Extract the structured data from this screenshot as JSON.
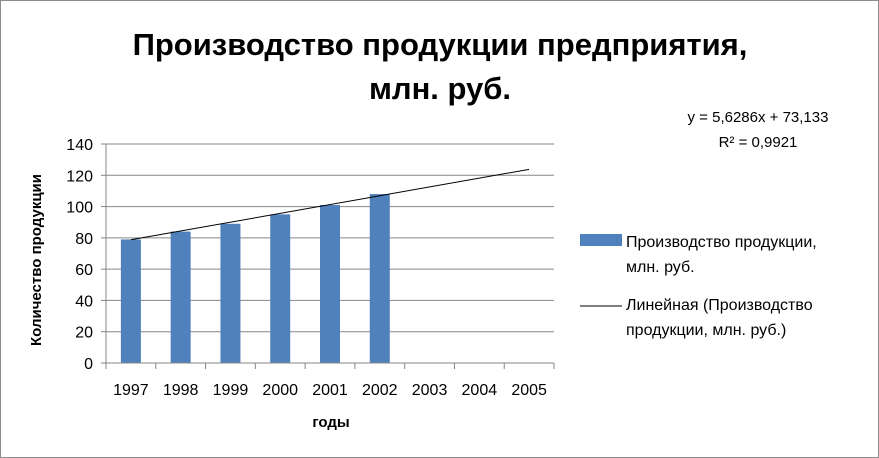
{
  "chart_data": {
    "type": "bar",
    "title_lines": [
      "Производство продукции предприятия,",
      "млн. руб."
    ],
    "xlabel": "годы",
    "ylabel": "Количество продукции",
    "categories": [
      "1997",
      "1998",
      "1999",
      "2000",
      "2001",
      "2002",
      "2003",
      "2004",
      "2005"
    ],
    "ylim": [
      0,
      140
    ],
    "yticks": [
      "0",
      "20",
      "40",
      "60",
      "80",
      "100",
      "120",
      "140"
    ],
    "grid": true,
    "legend_position": "right",
    "series": [
      {
        "name": "Производство продукции, млн. руб.",
        "legend_lines": [
          "Производство продукции,",
          "млн. руб."
        ],
        "values": [
          79,
          84,
          89,
          95,
          101,
          108,
          null,
          null,
          null
        ],
        "color": "#4f81bd"
      }
    ],
    "trendline": {
      "name": "Линейная (Производство продукции, млн. руб.)",
      "legend_lines": [
        "Линейная (Производство",
        "продукции, млн. руб.)"
      ],
      "slope": 5.6286,
      "intercept": 73.133,
      "x_from": "1997",
      "x_to": "2005",
      "color": "#000000",
      "equation": "y = 5,6286x + 73,133",
      "r_squared": "R² = 0,9921"
    }
  }
}
